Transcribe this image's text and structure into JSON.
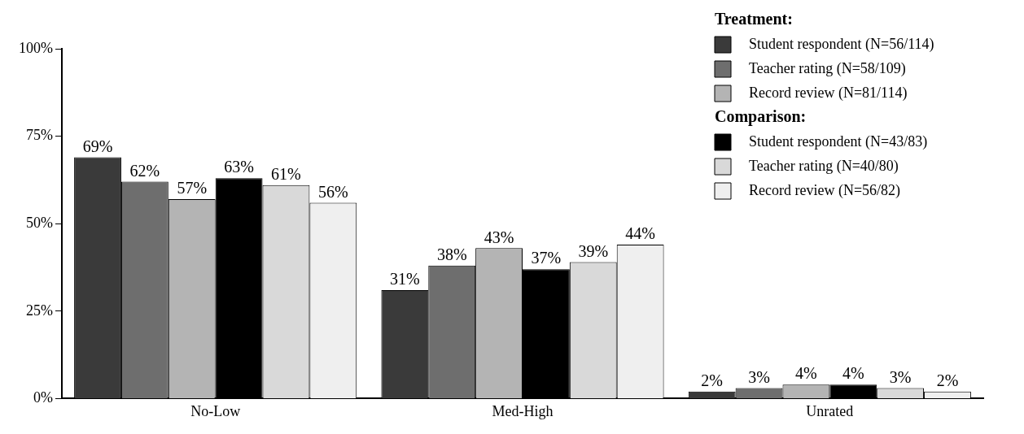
{
  "chart_data": {
    "type": "bar",
    "categories": [
      "No-Low",
      "Med-High",
      "Unrated"
    ],
    "series": [
      {
        "name": "Student respondent (N=56/114)",
        "color": "#3a3a3a",
        "values": [
          69,
          31,
          2
        ],
        "value_labels": [
          "69%",
          "31%",
          "2%"
        ]
      },
      {
        "name": "Teacher rating (N=58/109)",
        "color": "#6e6e6e",
        "values": [
          62,
          38,
          3
        ],
        "value_labels": [
          "62%",
          "38%",
          "3%"
        ]
      },
      {
        "name": "Record review (N=81/114)",
        "color": "#b4b4b4",
        "values": [
          57,
          43,
          4
        ],
        "value_labels": [
          "57%",
          "43%",
          "4%"
        ]
      },
      {
        "name": "Student respondent (N=43/83)",
        "color": "#000000",
        "values": [
          63,
          37,
          4
        ],
        "value_labels": [
          "63%",
          "37%",
          "4%"
        ]
      },
      {
        "name": "Teacher rating (N=40/80)",
        "color": "#d9d9d9",
        "values": [
          61,
          39,
          3
        ],
        "value_labels": [
          "61%",
          "39%",
          "3%"
        ]
      },
      {
        "name": "Record review (N=56/82)",
        "color": "#efefef",
        "values": [
          56,
          44,
          2
        ],
        "value_labels": [
          "56%",
          "44%",
          "2%"
        ]
      }
    ],
    "ylim": [
      0,
      100
    ],
    "yticks": [
      {
        "value": 0,
        "label": "0%"
      },
      {
        "value": 25,
        "label": "25%"
      },
      {
        "value": 50,
        "label": "50%"
      },
      {
        "value": 75,
        "label": "75%"
      },
      {
        "value": 100,
        "label": "100%"
      }
    ],
    "grid": false,
    "legend": "top right",
    "annotations": [
      "Treatment:",
      "Comparison:"
    ]
  }
}
